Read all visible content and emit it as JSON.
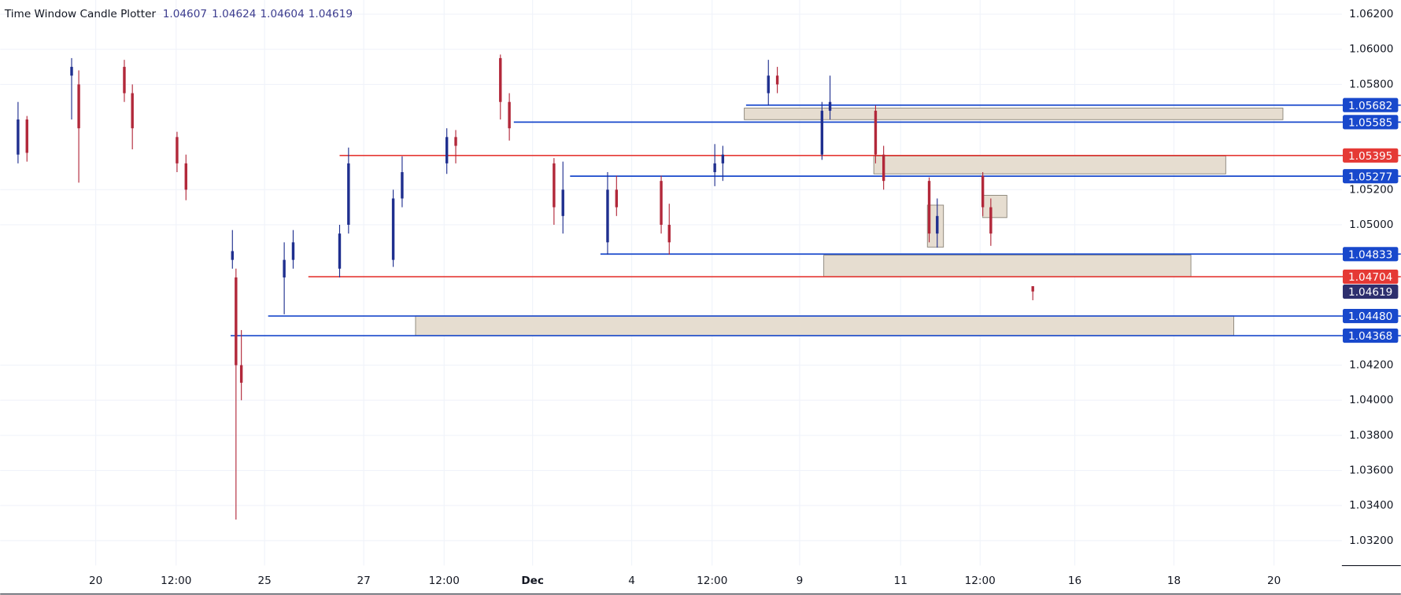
{
  "chart_data": {
    "type": "candlestick",
    "title": "Time Window Candle Plotter",
    "ohlc": [
      1.04607,
      1.04624,
      1.04604,
      1.04619
    ],
    "xlim": [
      0,
      1502
    ],
    "xticks": [
      {
        "value": 107,
        "label": "20"
      },
      {
        "value": 197,
        "label": "12:00"
      },
      {
        "value": 296,
        "label": "25"
      },
      {
        "value": 407,
        "label": "27"
      },
      {
        "value": 497,
        "label": "12:00"
      },
      {
        "value": 596,
        "label": "Dec"
      },
      {
        "value": 707,
        "label": "4"
      },
      {
        "value": 797,
        "label": "12:00"
      },
      {
        "value": 895,
        "label": "9"
      },
      {
        "value": 1008,
        "label": "11"
      },
      {
        "value": 1097,
        "label": "12:00"
      },
      {
        "value": 1203,
        "label": "16"
      },
      {
        "value": 1314,
        "label": "18"
      },
      {
        "value": 1426,
        "label": "20"
      }
    ],
    "ylim": [
      1.03058,
      1.06281
    ],
    "yticks": [
      {
        "value": 1.062,
        "label": "1.06200"
      },
      {
        "value": 1.06,
        "label": "1.06000"
      },
      {
        "value": 1.058,
        "label": "1.05800"
      },
      {
        "value": 1.052,
        "label": "1.05200"
      },
      {
        "value": 1.05,
        "label": "1.05000"
      },
      {
        "value": 1.042,
        "label": "1.04200"
      },
      {
        "value": 1.04,
        "label": "1.04000"
      },
      {
        "value": 1.038,
        "label": "1.03800"
      },
      {
        "value": 1.036,
        "label": "1.03600"
      },
      {
        "value": 1.034,
        "label": "1.03400"
      },
      {
        "value": 1.032,
        "label": "1.03200"
      }
    ],
    "grid": true,
    "up_color": "#1f2f8f",
    "down_color": "#b2283a",
    "candles": {
      "x": [
        20,
        30,
        80,
        88,
        139,
        148,
        198,
        208,
        260,
        264,
        270,
        318,
        328,
        380,
        390,
        440,
        450,
        500,
        510,
        560,
        570,
        620,
        630,
        680,
        690,
        740,
        749,
        800,
        809,
        860,
        870,
        920,
        929,
        980,
        989,
        1040,
        1049,
        1100,
        1109,
        1156
      ],
      "open": [
        1.054,
        1.056,
        1.0585,
        1.058,
        1.059,
        1.0575,
        1.055,
        1.0535,
        1.048,
        1.047,
        1.042,
        1.047,
        1.048,
        1.0475,
        1.05,
        1.048,
        1.0515,
        1.0535,
        1.055,
        1.0595,
        1.057,
        1.0535,
        1.0505,
        1.049,
        1.052,
        1.0525,
        1.05,
        1.053,
        1.0535,
        1.0575,
        1.0585,
        1.054,
        1.0565,
        1.0565,
        1.054,
        1.0525,
        1.0495,
        1.0528,
        1.051,
        1.0465
      ],
      "high": [
        1.057,
        1.0562,
        1.0595,
        1.0588,
        1.0594,
        1.058,
        1.0553,
        1.054,
        1.0497,
        1.0475,
        1.044,
        1.049,
        1.0497,
        1.05,
        1.0544,
        1.052,
        1.0539,
        1.0555,
        1.0554,
        1.0597,
        1.0575,
        1.0538,
        1.0536,
        1.053,
        1.0528,
        1.0528,
        1.0512,
        1.0546,
        1.0545,
        1.0594,
        1.059,
        1.057,
        1.0585,
        1.0568,
        1.0545,
        1.0527,
        1.0515,
        1.053,
        1.0515,
        1.0465
      ],
      "low": [
        1.0535,
        1.0536,
        1.056,
        1.0524,
        1.057,
        1.0543,
        1.053,
        1.0514,
        1.0475,
        1.0332,
        1.04,
        1.0449,
        1.0475,
        1.047,
        1.0495,
        1.0476,
        1.051,
        1.0529,
        1.0535,
        1.056,
        1.0548,
        1.05,
        1.0495,
        1.0483,
        1.0505,
        1.0495,
        1.0483,
        1.0522,
        1.0525,
        1.0568,
        1.0575,
        1.0537,
        1.056,
        1.0535,
        1.052,
        1.049,
        1.0487,
        1.0505,
        1.0488,
        1.0457
      ],
      "close": [
        1.056,
        1.0541,
        1.059,
        1.0555,
        1.0575,
        1.0555,
        1.0535,
        1.052,
        1.0485,
        1.042,
        1.041,
        1.048,
        1.049,
        1.0495,
        1.0535,
        1.0515,
        1.053,
        1.055,
        1.0545,
        1.057,
        1.0555,
        1.051,
        1.052,
        1.052,
        1.051,
        1.05,
        1.049,
        1.0535,
        1.054,
        1.0585,
        1.058,
        1.0565,
        1.057,
        1.054,
        1.0525,
        1.0495,
        1.0505,
        1.051,
        1.0495,
        1.0462
      ]
    },
    "levels": [
      {
        "value": 1.05682,
        "label": "1.05682",
        "color": "#1848cc",
        "x_start": 835
      },
      {
        "value": 1.05585,
        "label": "1.05585",
        "color": "#1848cc",
        "x_start": 575
      },
      {
        "value": 1.05395,
        "label": "1.05395",
        "color": "#e53935",
        "x_start": 380
      },
      {
        "value": 1.05277,
        "label": "1.05277",
        "color": "#1848cc",
        "x_start": 638
      },
      {
        "value": 1.04833,
        "label": "1.04833",
        "color": "#1848cc",
        "x_start": 672
      },
      {
        "value": 1.04704,
        "label": "1.04704",
        "color": "#e53935",
        "x_start": 345
      },
      {
        "value": 1.0448,
        "label": "1.04480",
        "color": "#1848cc",
        "x_start": 300
      },
      {
        "value": 1.04368,
        "label": "1.04368",
        "color": "#1848cc",
        "x_start": 258
      }
    ],
    "last": {
      "value": 1.04619,
      "label": "1.04619",
      "color": "#2d2f6e"
    },
    "zone_color": "#e6ddd0",
    "zones": [
      {
        "x1": 833,
        "x2": 1436,
        "top": 1.05665,
        "bottom": 1.05599
      },
      {
        "x1": 978,
        "x2": 1372,
        "top": 1.05392,
        "bottom": 1.0529
      },
      {
        "x1": 922,
        "x2": 1333,
        "top": 1.04827,
        "bottom": 1.04705
      },
      {
        "x1": 465,
        "x2": 1381,
        "top": 1.04481,
        "bottom": 1.04369
      },
      {
        "x1": 1038,
        "x2": 1056,
        "top": 1.05112,
        "bottom": 1.04873
      },
      {
        "x1": 1100,
        "x2": 1127,
        "top": 1.05168,
        "bottom": 1.05041
      }
    ]
  }
}
